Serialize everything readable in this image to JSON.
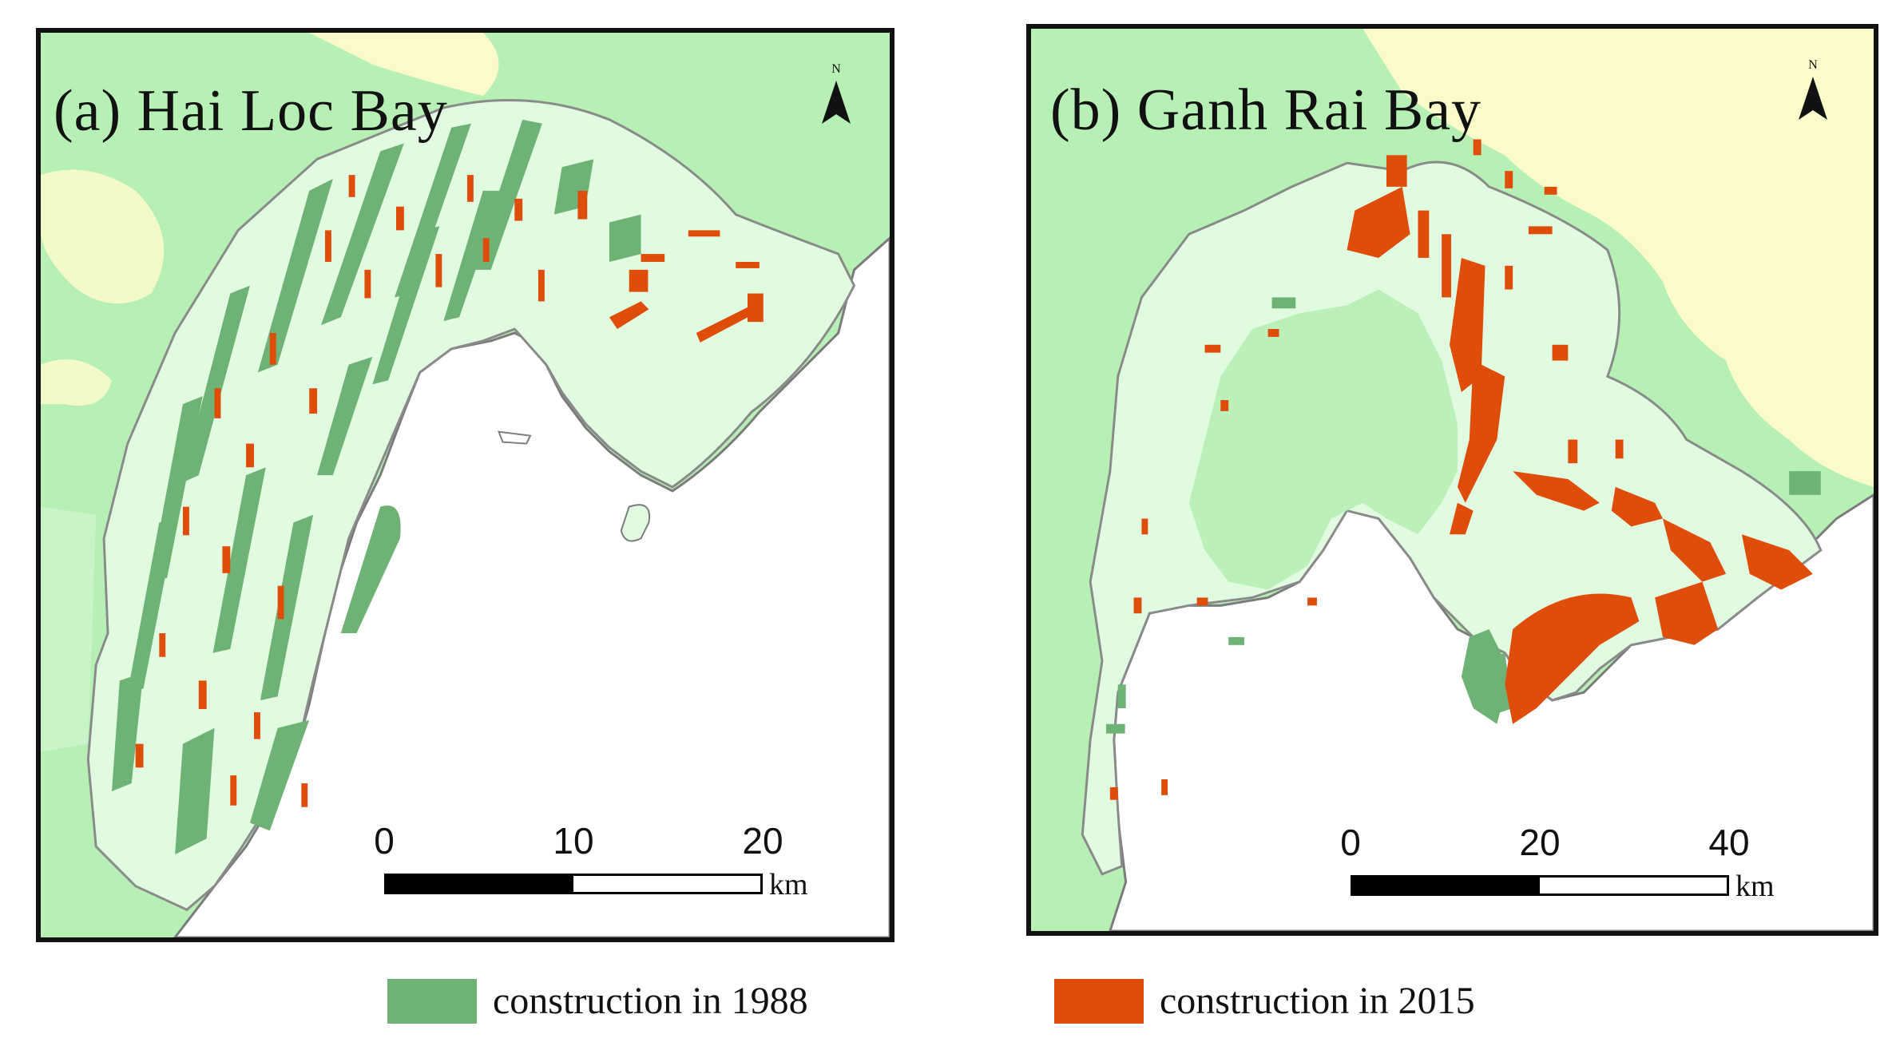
{
  "colors": {
    "background_land": "#b7f0b5",
    "upland": "#fbfbc9",
    "study_area": "#e1fbe0",
    "inner_water": "#86cc94",
    "sea": "#ffffff",
    "construction_1988": "#6fb275",
    "construction_2015": "#df4d0a"
  },
  "panels": [
    {
      "title": "(a) Hai Loc Bay",
      "north_label": "N",
      "scale": {
        "ticks": [
          "0",
          "10",
          "20"
        ],
        "unit": "km"
      }
    },
    {
      "title": "(b) Ganh Rai Bay",
      "north_label": "N",
      "scale": {
        "ticks": [
          "0",
          "20",
          "40"
        ],
        "unit": "km"
      }
    }
  ],
  "legend": [
    {
      "label": "construction in 1988",
      "color": "#6fb275"
    },
    {
      "label": "construction in 2015",
      "color": "#df4d0a"
    }
  ]
}
